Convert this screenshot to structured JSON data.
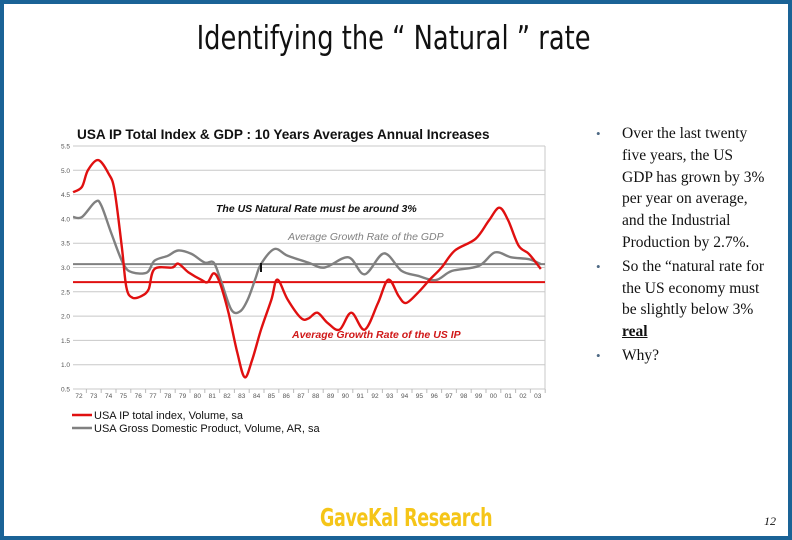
{
  "slide": {
    "title": "Identifying the “ Natural ” rate",
    "bullets": [
      {
        "text": "Over the last twenty five years, the US GDP has grown by  3% per year on average, and the Industrial Production by 2.7%."
      },
      {
        "text": "So the “natural rate for the US economy must be slightly below 3% ",
        "emphasis": "real"
      },
      {
        "text": "Why?"
      }
    ],
    "brand": "GaveKal Research",
    "page_number": "12",
    "border_color": "#1a6396",
    "brand_color": "#f5c518"
  },
  "chart_data": {
    "type": "line",
    "title": "USA IP Total Index & GDP : 10 Years Averages Annual Increases",
    "xlabel": "",
    "ylabel": "",
    "ylim": [
      0.5,
      5.5
    ],
    "yticks": [
      "0.5",
      "1.0",
      "1.5",
      "2.0",
      "2.5",
      "3.0",
      "3.5",
      "4.0",
      "4.5",
      "5.0",
      "5.5"
    ],
    "xticks": [
      "72",
      "73",
      "74",
      "75",
      "76",
      "77",
      "78",
      "79",
      "80",
      "81",
      "82",
      "83",
      "84",
      "85",
      "86",
      "87",
      "88",
      "89",
      "90",
      "91",
      "92",
      "93",
      "94",
      "95",
      "96",
      "97",
      "98",
      "99",
      "00",
      "01",
      "02",
      "03"
    ],
    "grid": true,
    "legend_position": "bottom-left",
    "series": [
      {
        "name": "USA IP total index, Volume, sa",
        "color": "#e01010",
        "x": [
          1971.6,
          1972.2,
          1972.6,
          1973.3,
          1974.0,
          1974.4,
          1974.9,
          1975.2,
          1975.6,
          1976.2,
          1976.7,
          1977.1,
          1978.3,
          1978.7,
          1979.4,
          1980.3,
          1980.7,
          1981.1,
          1981.5,
          1982.1,
          1982.7,
          1983.2,
          1983.7,
          1984.3,
          1985.0,
          1985.4,
          1986.1,
          1987.0,
          1987.5,
          1988.1,
          1988.8,
          1989.6,
          1990.4,
          1991.3,
          1992.2,
          1992.9,
          1993.6,
          1994.1,
          1994.9,
          1995.7,
          1996.5,
          1997.4,
          1998.8,
          1999.7,
          2000.4,
          2001.0,
          2001.7,
          2002.4,
          2003.2
        ],
        "values": [
          4.55,
          4.66,
          5.0,
          5.21,
          4.93,
          4.59,
          3.41,
          2.59,
          2.38,
          2.41,
          2.55,
          2.97,
          3.0,
          3.08,
          2.9,
          2.74,
          2.7,
          2.88,
          2.7,
          2.07,
          1.24,
          0.74,
          1.1,
          1.72,
          2.34,
          2.75,
          2.34,
          1.96,
          1.95,
          2.07,
          1.86,
          1.72,
          2.07,
          1.72,
          2.27,
          2.75,
          2.41,
          2.27,
          2.48,
          2.75,
          3.0,
          3.35,
          3.59,
          3.97,
          4.23,
          3.97,
          3.45,
          3.28,
          2.97
        ]
      },
      {
        "name": "USA Gross Domestic Product, Volume, AR, sa",
        "color": "#808080",
        "x": [
          1971.6,
          1972.2,
          1973.1,
          1973.5,
          1974.2,
          1975.0,
          1975.6,
          1976.6,
          1977.1,
          1978.0,
          1978.7,
          1979.6,
          1980.5,
          1981.1,
          1981.6,
          1982.3,
          1982.9,
          1983.4,
          1983.9,
          1984.3,
          1985.2,
          1986.1,
          1987.5,
          1988.6,
          1990.2,
          1991.3,
          1992.6,
          1993.8,
          1994.9,
          1996.1,
          1997.2,
          1999.0,
          2000.1,
          2001.2,
          2002.4,
          2003.2
        ],
        "values": [
          4.04,
          4.04,
          4.35,
          4.28,
          3.69,
          3.07,
          2.9,
          2.9,
          3.14,
          3.24,
          3.35,
          3.28,
          3.1,
          3.1,
          2.72,
          2.13,
          2.1,
          2.34,
          2.75,
          3.07,
          3.38,
          3.24,
          3.1,
          3.0,
          3.21,
          2.86,
          3.29,
          2.93,
          2.83,
          2.74,
          2.93,
          3.03,
          3.31,
          3.21,
          3.17,
          3.07
        ]
      }
    ],
    "reference_lines": [
      {
        "value": 3.07,
        "color": "#808080"
      },
      {
        "value": 2.7,
        "color": "#e01010"
      }
    ],
    "annotations": [
      {
        "text": "The US Natural Rate must be around 3%",
        "color": "#111111"
      },
      {
        "text": "Average Growth Rate of the GDP",
        "color": "#808080"
      },
      {
        "text": "Average Growth Rate of the US IP",
        "color": "#d01818"
      }
    ]
  }
}
